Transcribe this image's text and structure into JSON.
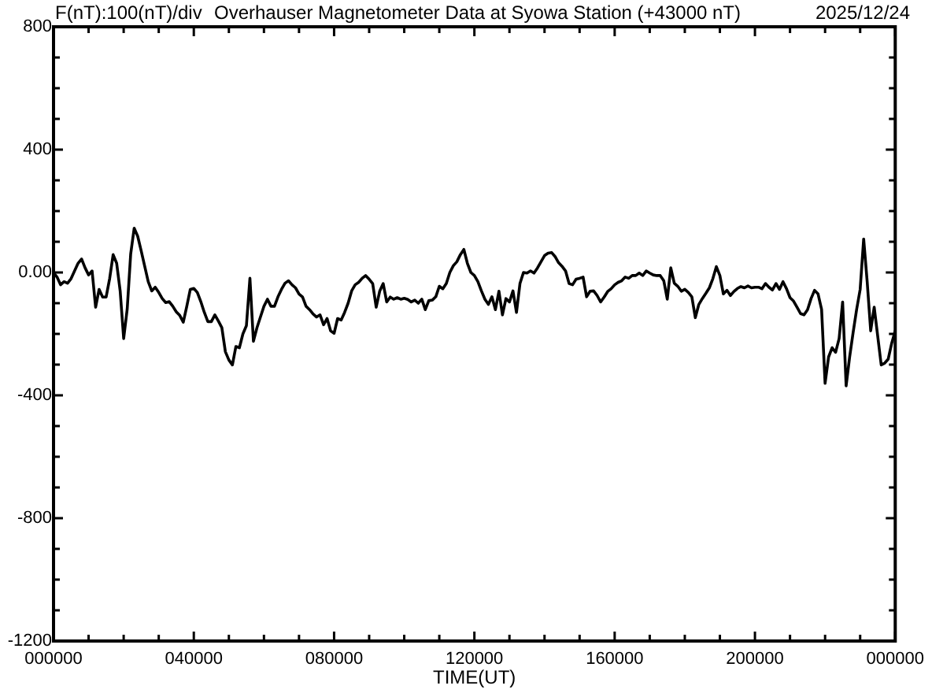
{
  "chart_data": {
    "type": "line",
    "title": "Overhauser Magnetometer Data at Syowa Station (+43000 nT)",
    "ylabel": "F(nT):100(nT)/div",
    "xlabel": "TIME(UT)",
    "annotations": [
      "2025/12/24"
    ],
    "categories": [
      "000000",
      null,
      null,
      null,
      null,
      null,
      null,
      null,
      null,
      null,
      null,
      null,
      null,
      null,
      null,
      null,
      null,
      null,
      null,
      null,
      null,
      null,
      null,
      null,
      null,
      null,
      null,
      null,
      null,
      null,
      null,
      null,
      null,
      null,
      null,
      null,
      null,
      null,
      null,
      null,
      "040000",
      null,
      null,
      null,
      null,
      null,
      null,
      null,
      null,
      null,
      null,
      null,
      null,
      null,
      null,
      null,
      null,
      null,
      null,
      null,
      null,
      null,
      null,
      null,
      null,
      null,
      null,
      null,
      null,
      null,
      null,
      null,
      null,
      null,
      null,
      null,
      null,
      null,
      null,
      null,
      "080000",
      null,
      null,
      null,
      null,
      null,
      null,
      null,
      null,
      null,
      null,
      null,
      null,
      null,
      null,
      null,
      null,
      null,
      null,
      null,
      null,
      null,
      null,
      null,
      null,
      null,
      null,
      null,
      null,
      null,
      null,
      null,
      null,
      null,
      null,
      null,
      null,
      null,
      null,
      null,
      "120000",
      null,
      null,
      null,
      null,
      null,
      null,
      null,
      null,
      null,
      null,
      null,
      null,
      null,
      null,
      null,
      null,
      null,
      null,
      null,
      null,
      null,
      null,
      null,
      null,
      null,
      null,
      null,
      null,
      null,
      null,
      null,
      null,
      null,
      null,
      null,
      null,
      null,
      null,
      null,
      "160000",
      null,
      null,
      null,
      null,
      null,
      null,
      null,
      null,
      null,
      null,
      null,
      null,
      null,
      null,
      null,
      null,
      null,
      null,
      null,
      null,
      null,
      null,
      null,
      null,
      null,
      null,
      null,
      null,
      null,
      null,
      null,
      null,
      null,
      null,
      null,
      null,
      null,
      null,
      null,
      "200000",
      null,
      null,
      null,
      null,
      null,
      null,
      null,
      null,
      null,
      null,
      null,
      null,
      null,
      null,
      null,
      null,
      null,
      null,
      null,
      null,
      null,
      null,
      null,
      null,
      null,
      null,
      null,
      null,
      null,
      null,
      null,
      null,
      null,
      null,
      null,
      null,
      null,
      null,
      null,
      "000000"
    ],
    "series": [
      {
        "color": "#000000",
        "values": [
          0,
          -15,
          -40,
          -30,
          -35,
          -20,
          5,
          30,
          44,
          15,
          -8,
          5,
          -113,
          -55,
          -80,
          -80,
          -20,
          58,
          30,
          -60,
          -215,
          -120,
          60,
          144,
          118,
          70,
          20,
          -30,
          -60,
          -48,
          -65,
          -85,
          -98,
          -95,
          -110,
          -128,
          -140,
          -162,
          -110,
          -55,
          -52,
          -65,
          -95,
          -130,
          -160,
          -160,
          -138,
          -158,
          -180,
          -258,
          -285,
          -301,
          -241,
          -245,
          -200,
          -173,
          -19,
          -224,
          -180,
          -145,
          -110,
          -87,
          -110,
          -110,
          -79,
          -55,
          -35,
          -27,
          -40,
          -50,
          -70,
          -80,
          -110,
          -121,
          -135,
          -145,
          -138,
          -170,
          -150,
          -190,
          -198,
          -150,
          -155,
          -130,
          -100,
          -60,
          -40,
          -32,
          -19,
          -10,
          -22,
          -36,
          -113,
          -61,
          -36,
          -96,
          -80,
          -87,
          -82,
          -87,
          -84,
          -88,
          -96,
          -90,
          -100,
          -87,
          -121,
          -92,
          -90,
          -79,
          -45,
          -53,
          -36,
          0,
          22,
          35,
          58,
          75,
          30,
          0,
          -10,
          -30,
          -60,
          -87,
          -104,
          -79,
          -121,
          -61,
          -138,
          -85,
          -96,
          -60,
          -130,
          -36,
          0,
          -2,
          5,
          -2,
          15,
          35,
          55,
          63,
          65,
          52,
          32,
          20,
          5,
          -36,
          -40,
          -22,
          -19,
          -15,
          -79,
          -61,
          -60,
          -75,
          -96,
          -80,
          -62,
          -53,
          -40,
          -32,
          -27,
          -15,
          -19,
          -10,
          -10,
          -2,
          -10,
          5,
          -2,
          -8,
          -10,
          -10,
          -27,
          -87,
          15,
          -35,
          -45,
          -61,
          -55,
          -65,
          -79,
          -147,
          -104,
          -85,
          -68,
          -50,
          -20,
          19,
          -10,
          -70,
          -58,
          -75,
          -62,
          -52,
          -46,
          -50,
          -44,
          -50,
          -48,
          -48,
          -53,
          -36,
          -48,
          -57,
          -36,
          -55,
          -30,
          -53,
          -82,
          -93,
          -113,
          -134,
          -138,
          -121,
          -85,
          -58,
          -70,
          -120,
          -361,
          -275,
          -245,
          -260,
          -215,
          -96,
          -369,
          -275,
          -195,
          -120,
          -55,
          109,
          -30,
          -190,
          -113,
          -207,
          -301,
          -295,
          -282,
          -230,
          -190
        ]
      }
    ],
    "ylim": [
      -1200,
      800
    ],
    "yticks": [
      -1200,
      {
        "value": -1100,
        "label": null
      },
      {
        "value": -1000,
        "label": null
      },
      {
        "value": -900,
        "label": null
      },
      -800,
      {
        "value": -700,
        "label": null
      },
      {
        "value": -600,
        "label": null
      },
      {
        "value": -500,
        "label": null
      },
      -400,
      {
        "value": -300,
        "label": null
      },
      {
        "value": -200,
        "label": null
      },
      {
        "value": -100,
        "label": null
      },
      {
        "value": 0,
        "label": "0.00"
      },
      {
        "value": 100,
        "label": null
      },
      {
        "value": 200,
        "label": null
      },
      {
        "value": 300,
        "label": null
      },
      400,
      {
        "value": 500,
        "label": null
      },
      {
        "value": 600,
        "label": null
      },
      {
        "value": 700,
        "label": null
      },
      800
    ],
    "line_style": "solid"
  }
}
